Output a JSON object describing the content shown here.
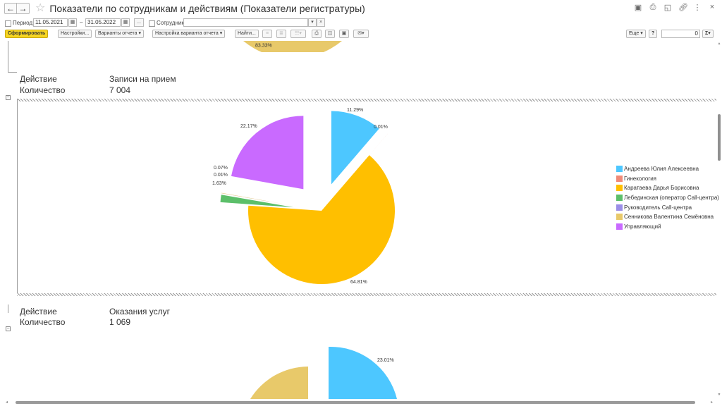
{
  "window": {
    "title": "Показатели по сотрудникам и действиям (Показатели регистратуры)",
    "back_icon": "←",
    "forward_icon": "→"
  },
  "params": {
    "period_label": "Период:",
    "date_from": "11.05.2021",
    "dash": "–",
    "date_to": "31.05.2022",
    "more_button": "...",
    "employee_label": "Сотрудник:",
    "employee_value": "",
    "dropdown_glyph": "▾",
    "clear_glyph": "×"
  },
  "toolbar": {
    "generate": "Сформировать",
    "settings": "Настройки...",
    "report_variants": "Варианты отчета",
    "variant_settings": "Настройка варианта отчета",
    "find": "Найти...",
    "more": "Еще",
    "help": "?",
    "sum_value": "0",
    "sum_symbol": "Σ"
  },
  "report": {
    "row1_label": "Действие",
    "row1_value": "Записи на прием",
    "row2_label": "Количество",
    "row2_value": "7 004",
    "row3_label": "Действие",
    "row3_value": "Оказания услуг",
    "row4_label": "Количество",
    "row4_value": "1 069",
    "top_partial_label": "83.33%",
    "bottom_partial_label": "23.01%"
  },
  "colors": {
    "andreeva": "#4dc7ff",
    "gynecology": "#f08a78",
    "karataeva": "#ffbf00",
    "lebedinskaya": "#5cbf6a",
    "call_center_head": "#9b8ee8",
    "sennikova": "#e8c96a",
    "manager": "#c96aff"
  },
  "chart_data": {
    "type": "pie",
    "title": "",
    "slices": [
      {
        "name": "Андреева Юлия Алексеевна",
        "value": 11.29,
        "label": "11.29%",
        "color": "#4dc7ff"
      },
      {
        "name": "Гинекология",
        "value": 0.01,
        "label": "0.01%",
        "color": "#f08a78"
      },
      {
        "name": "Каратаева Дарья Борисовна",
        "value": 64.81,
        "label": "64.81%",
        "color": "#ffbf00"
      },
      {
        "name": "Лебединская (оператор Call-центра)",
        "value": 1.63,
        "label": "1.63%",
        "color": "#5cbf6a"
      },
      {
        "name": "Руководитель Call-центра",
        "value": 0.01,
        "label": "0.01%",
        "color": "#9b8ee8"
      },
      {
        "name": "Сенникова Валентина Семёновна",
        "value": 0.07,
        "label": "0.07%",
        "color": "#e8c96a"
      },
      {
        "name": "Управляющий",
        "value": 22.17,
        "label": "22.17%",
        "color": "#c96aff"
      }
    ],
    "legend_position": "right"
  }
}
